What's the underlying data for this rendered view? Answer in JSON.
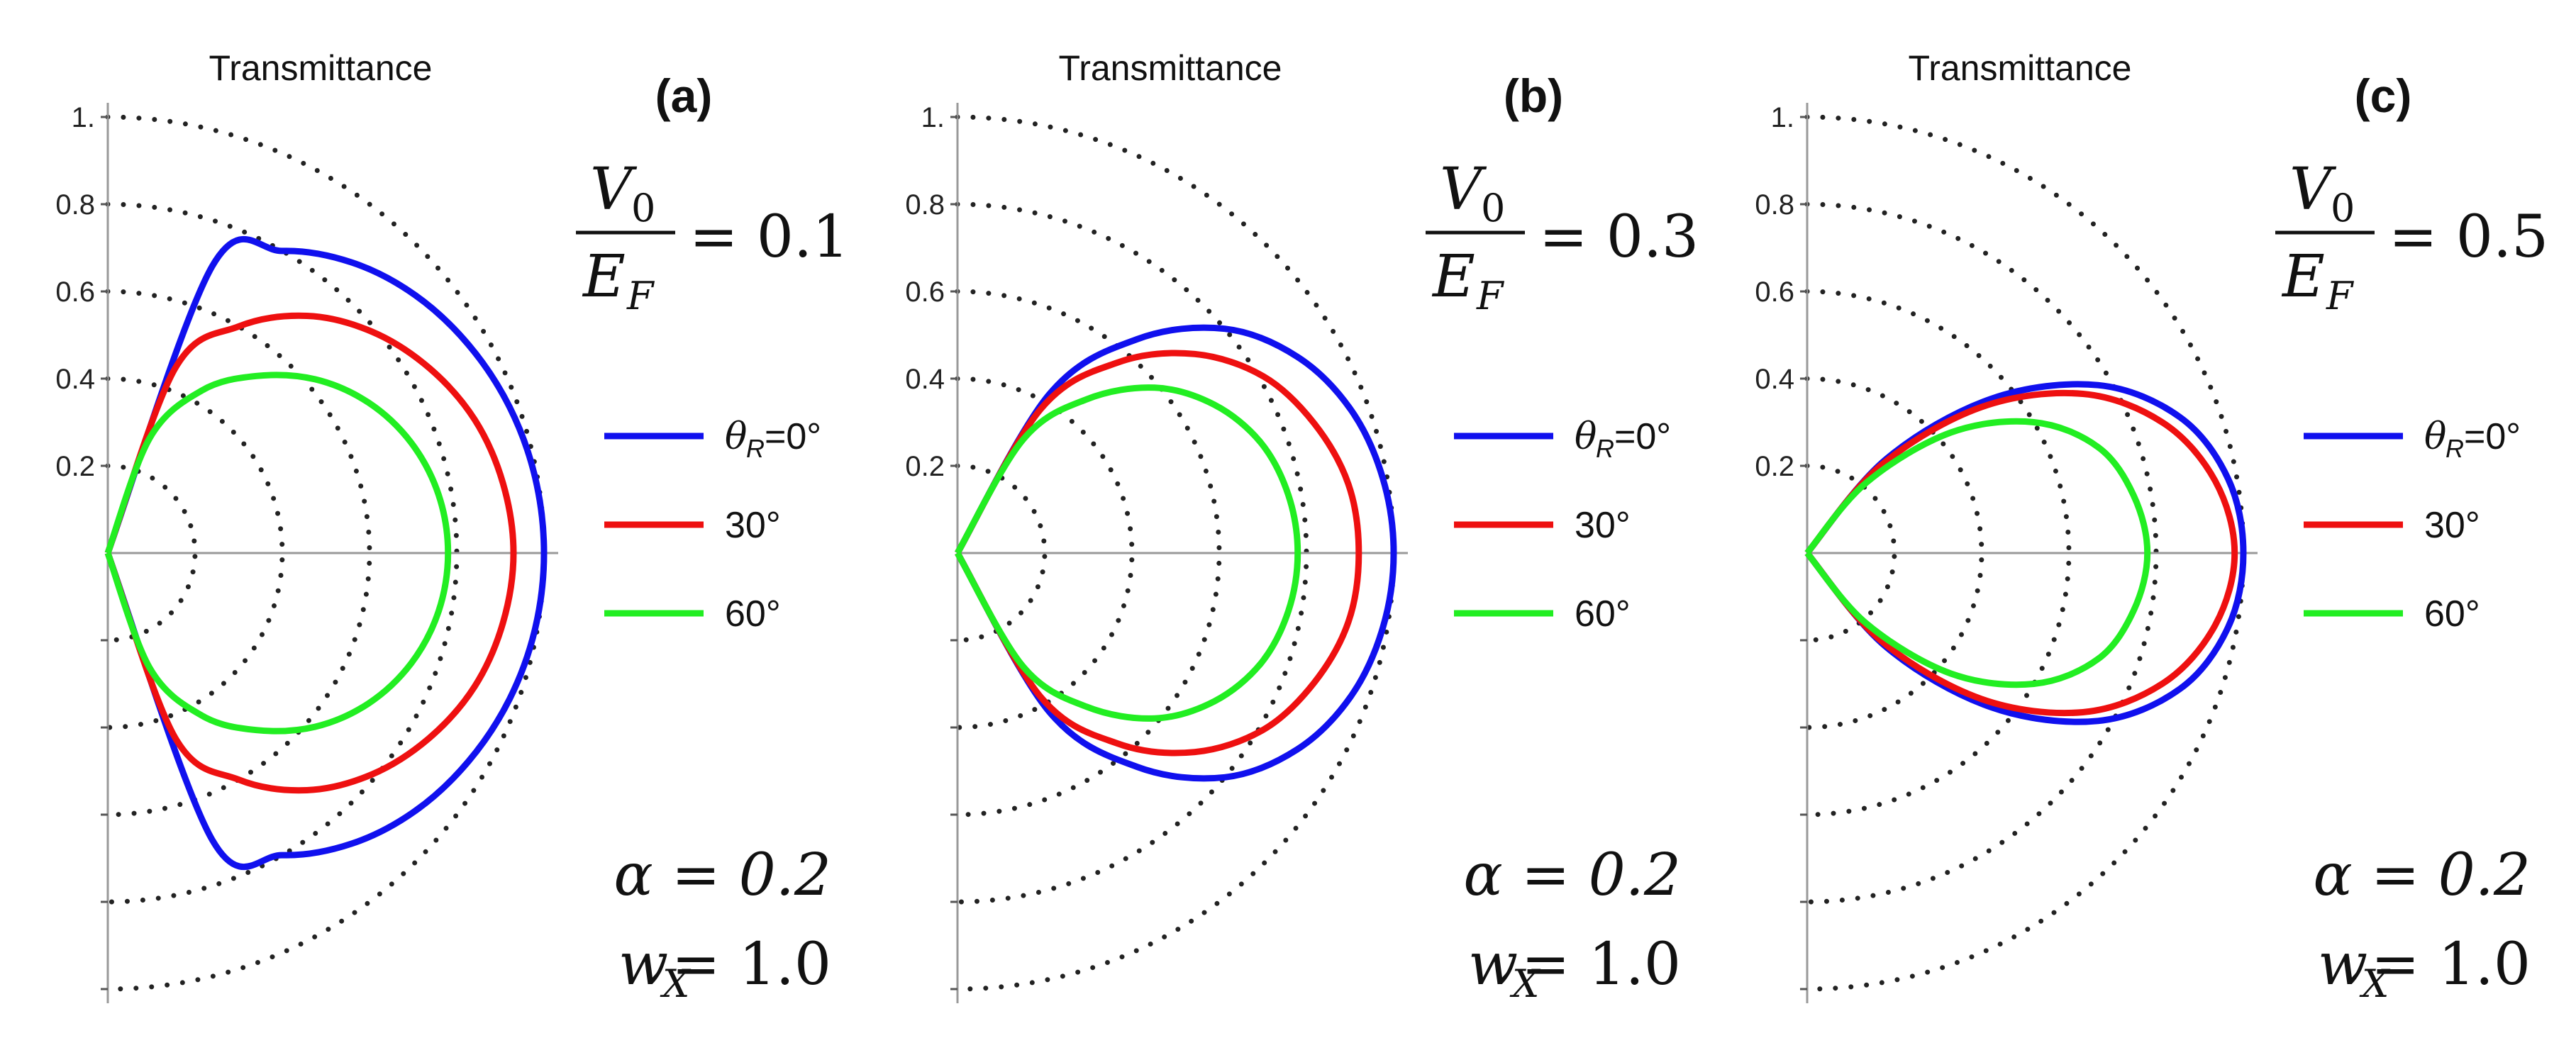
{
  "chart_data": [
    {
      "type": "polar-line",
      "panel": "(a)",
      "title": "Transmittance",
      "r_ticks": [
        "1.",
        "0.8",
        "0.6",
        "0.4",
        "0.2"
      ],
      "rlim": [
        0,
        1
      ],
      "theta_range_deg": [
        -90,
        90
      ],
      "params": {
        "V0_over_EF": "0.1",
        "alpha": "0.2",
        "wX": "1.0"
      },
      "series": [
        {
          "name": "θR=0°",
          "color": "#1010ee",
          "theta": [
            0,
            10,
            20,
            30,
            40,
            50,
            60,
            70,
            80
          ],
          "r": [
            1.0,
            0.995,
            0.98,
            0.955,
            0.92,
            0.87,
            0.8,
            0.7,
            0.0
          ]
        },
        {
          "name": "30°",
          "color": "#ee1010",
          "theta": [
            0,
            10,
            20,
            30,
            40,
            50,
            60,
            70,
            80
          ],
          "r": [
            0.93,
            0.92,
            0.895,
            0.85,
            0.79,
            0.71,
            0.6,
            0.45,
            0.0
          ]
        },
        {
          "name": "60°",
          "color": "#22ee22",
          "theta": [
            0,
            10,
            20,
            30,
            40,
            50,
            60,
            70,
            80
          ],
          "r": [
            0.78,
            0.77,
            0.74,
            0.69,
            0.62,
            0.53,
            0.43,
            0.28,
            0.0
          ]
        }
      ]
    },
    {
      "type": "polar-line",
      "panel": "(b)",
      "title": "Transmittance",
      "r_ticks": [
        "1.",
        "0.8",
        "0.6",
        "0.4",
        "0.2"
      ],
      "rlim": [
        0,
        1
      ],
      "theta_range_deg": [
        -90,
        90
      ],
      "params": {
        "V0_over_EF": "0.3",
        "alpha": "0.2",
        "wX": "1.0"
      },
      "series": [
        {
          "name": "θR=0°",
          "color": "#1010ee",
          "theta": [
            0,
            10,
            20,
            30,
            40,
            50,
            60,
            70
          ],
          "r": [
            1.0,
            0.99,
            0.96,
            0.9,
            0.8,
            0.64,
            0.42,
            0.0
          ]
        },
        {
          "name": "30°",
          "color": "#ee1010",
          "theta": [
            0,
            10,
            20,
            30,
            40,
            50,
            60,
            70
          ],
          "r": [
            0.92,
            0.91,
            0.87,
            0.81,
            0.71,
            0.57,
            0.38,
            0.0
          ]
        },
        {
          "name": "60°",
          "color": "#22ee22",
          "theta": [
            0,
            10,
            20,
            30,
            40,
            50,
            60,
            70
          ],
          "r": [
            0.78,
            0.77,
            0.74,
            0.68,
            0.59,
            0.46,
            0.3,
            0.0
          ]
        }
      ]
    },
    {
      "type": "polar-line",
      "panel": "(c)",
      "title": "Transmittance",
      "r_ticks": [
        "1.",
        "0.8",
        "0.6",
        "0.4",
        "0.2"
      ],
      "rlim": [
        0,
        1
      ],
      "theta_range_deg": [
        -90,
        90
      ],
      "params": {
        "V0_over_EF": "0.5",
        "alpha": "0.2",
        "wX": "1.0"
      },
      "series": [
        {
          "name": "θR=0°",
          "color": "#1010ee",
          "theta": [
            0,
            10,
            20,
            30,
            40,
            50,
            60
          ],
          "r": [
            1.0,
            0.98,
            0.91,
            0.77,
            0.55,
            0.28,
            0.0
          ]
        },
        {
          "name": "30°",
          "color": "#ee1010",
          "theta": [
            0,
            10,
            20,
            30,
            40,
            50,
            60
          ],
          "r": [
            0.98,
            0.95,
            0.87,
            0.73,
            0.52,
            0.26,
            0.0
          ]
        },
        {
          "name": "60°",
          "color": "#22ee22",
          "theta": [
            0,
            10,
            20,
            30,
            40,
            50,
            60
          ],
          "r": [
            0.78,
            0.76,
            0.71,
            0.6,
            0.43,
            0.21,
            0.0
          ]
        }
      ]
    }
  ],
  "labels": {
    "a": {
      "title": "Transmittance",
      "panel": "(a)",
      "v0": "V",
      "v0sub": "0",
      "ef": "E",
      "efsub": "F",
      "ratio": "= 0.1",
      "alpha": "α = 0.2",
      "wx": "w",
      "wxsub": "X",
      "wxval": "= 1.0"
    },
    "b": {
      "title": "Transmittance",
      "panel": "(b)",
      "v0": "V",
      "v0sub": "0",
      "ef": "E",
      "efsub": "F",
      "ratio": "= 0.3",
      "alpha": "α = 0.2",
      "wx": "w",
      "wxsub": "X",
      "wxval": "= 1.0"
    },
    "c": {
      "title": "Transmittance",
      "panel": "(c)",
      "v0": "V",
      "v0sub": "0",
      "ef": "E",
      "efsub": "F",
      "ratio": "= 0.5",
      "alpha": "α = 0.2",
      "wx": "w",
      "wxsub": "X",
      "wxval": "= 1.0"
    }
  },
  "legend": {
    "theta_symbol": "θ",
    "theta_sub": "R",
    "first_suffix": "=0°",
    "second": "30°",
    "third": "60°"
  }
}
